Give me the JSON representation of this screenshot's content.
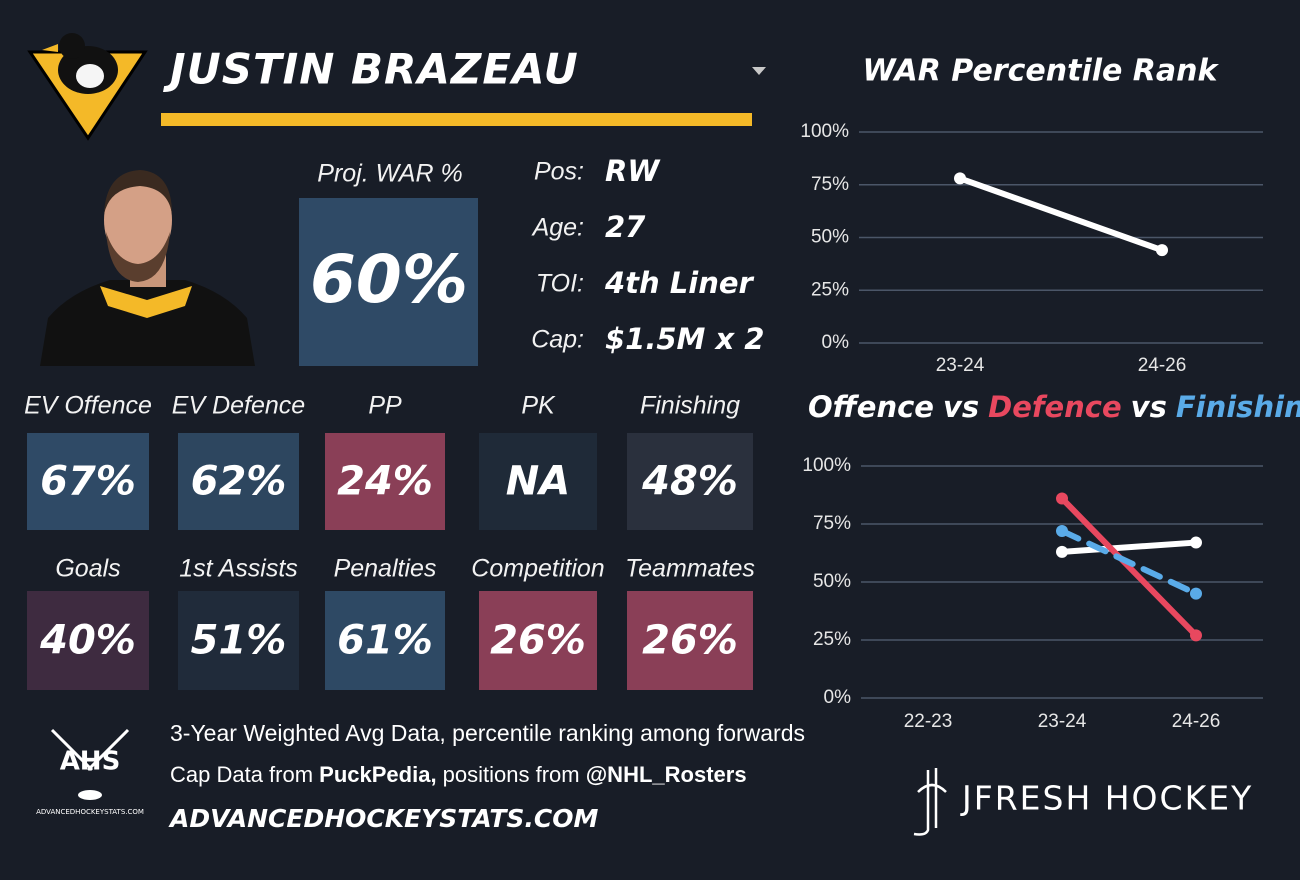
{
  "header": {
    "name": "JUSTIN BRAZEAU"
  },
  "proj_war": {
    "label": "Proj. WAR %",
    "value": "60%",
    "color": "#2f4a66"
  },
  "info": [
    {
      "label": "Pos:",
      "value": "RW"
    },
    {
      "label": "Age:",
      "value": "27"
    },
    {
      "label": "TOI:",
      "value": "4th Liner"
    },
    {
      "label": "Cap:",
      "value": "$1.5M x 2"
    }
  ],
  "tiles": [
    [
      {
        "label": "EV Offence",
        "value": "67%",
        "color": "#2f4a66"
      },
      {
        "label": "EV Defence",
        "value": "62%",
        "color": "#2d465f"
      },
      {
        "label": "PP",
        "value": "24%",
        "color": "#8a3f57"
      },
      {
        "label": "PK",
        "value": "NA",
        "color": "#1f2a38"
      },
      {
        "label": "Finishing",
        "value": "48%",
        "color": "#2a303d"
      }
    ],
    [
      {
        "label": "Goals",
        "value": "40%",
        "color": "#3e2b40"
      },
      {
        "label": "1st Assists",
        "value": "51%",
        "color": "#202b3a"
      },
      {
        "label": "Penalties",
        "value": "61%",
        "color": "#2e4964"
      },
      {
        "label": "Competition",
        "value": "26%",
        "color": "#8a3f57"
      },
      {
        "label": "Teammates",
        "value": "26%",
        "color": "#8a3f57"
      }
    ]
  ],
  "footer": {
    "line1": "3-Year Weighted Avg Data, percentile ranking among forwards",
    "line2": [
      {
        "text": "Cap Data from ",
        "bold": false
      },
      {
        "text": "PuckPedia,",
        "bold": true
      },
      {
        "text": " positions from ",
        "bold": false
      },
      {
        "text": "@NHL_Rosters",
        "bold": true
      }
    ],
    "line3": "ADVANCEDHOCKEYSTATS.COM",
    "ahs_logo": "AHS",
    "ahs_logo_sub": "ADVANCEDHOCKEYSTATS.COM",
    "brand": "JFRESH HOCKEY"
  },
  "chart_data": [
    {
      "type": "line",
      "title": "WAR Percentile Rank",
      "categories": [
        "23-24",
        "24-26"
      ],
      "values": [
        78,
        44
      ],
      "color": "#ffffff",
      "ylim": [
        0,
        100
      ],
      "yticks": [
        {
          "value": 0,
          "label": "0%"
        },
        {
          "value": 25,
          "label": "25%"
        },
        {
          "value": 50,
          "label": "50%"
        },
        {
          "value": 75,
          "label": "75%"
        },
        {
          "value": 100,
          "label": "100%"
        }
      ],
      "grid": true
    },
    {
      "type": "line",
      "title_joiner": "vs",
      "categories": [
        "22-23",
        "23-24",
        "24-26"
      ],
      "series": [
        {
          "name": "Offence",
          "color": "#ffffff",
          "values": [
            null,
            63,
            67
          ],
          "dashed": false
        },
        {
          "name": "Defence",
          "color": "#e8485f",
          "values": [
            null,
            86,
            27
          ],
          "dashed": false
        },
        {
          "name": "Finishing",
          "color": "#5aabe8",
          "values": [
            null,
            72,
            45
          ],
          "dashed": true
        }
      ],
      "ylim": [
        0,
        100
      ],
      "yticks": [
        {
          "value": 0,
          "label": "0%"
        },
        {
          "value": 25,
          "label": "25%"
        },
        {
          "value": 50,
          "label": "50%"
        },
        {
          "value": 75,
          "label": "75%"
        },
        {
          "value": 100,
          "label": "100%"
        }
      ],
      "grid": true
    }
  ]
}
